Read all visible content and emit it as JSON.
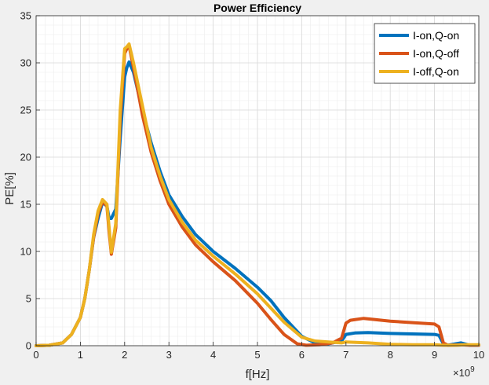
{
  "chart_data": {
    "type": "line",
    "title": "Power Efficiency",
    "xlabel": "f[Hz]",
    "ylabel": "PE[%]",
    "x_multiplier_label": "×10",
    "x_multiplier_exp": "9",
    "xlim": [
      0,
      10
    ],
    "ylim": [
      0,
      35
    ],
    "xticks": [
      0,
      1,
      2,
      3,
      4,
      5,
      6,
      7,
      8,
      9,
      10
    ],
    "yticks": [
      0,
      5,
      10,
      15,
      20,
      25,
      30,
      35
    ],
    "grid": true,
    "minor_grid": true,
    "legend_position": "top-right",
    "series": [
      {
        "name": "I-on,Q-on",
        "color": "#0072BD",
        "x": [
          0,
          0.3,
          0.6,
          0.8,
          1.0,
          1.1,
          1.2,
          1.3,
          1.4,
          1.5,
          1.6,
          1.65,
          1.7,
          1.8,
          1.9,
          2.0,
          2.05,
          2.1,
          2.2,
          2.4,
          2.6,
          2.8,
          3.0,
          3.3,
          3.6,
          4.0,
          4.5,
          5.0,
          5.3,
          5.6,
          6.0,
          6.3,
          6.6,
          6.9,
          7.0,
          7.2,
          7.5,
          8.0,
          8.5,
          9.0,
          9.1,
          9.2,
          9.3,
          9.6,
          9.8,
          10
        ],
        "y": [
          0,
          0.05,
          0.3,
          1.2,
          3.0,
          5.0,
          8.0,
          11.5,
          13.5,
          15.2,
          14.8,
          13.5,
          13.5,
          14.5,
          22.0,
          28.5,
          29.5,
          30.1,
          29.0,
          25.0,
          21.5,
          18.5,
          16.0,
          13.7,
          11.8,
          10.0,
          8.2,
          6.2,
          4.8,
          3.0,
          1.0,
          0.3,
          0.2,
          0.5,
          1.2,
          1.35,
          1.4,
          1.3,
          1.25,
          1.2,
          1.1,
          0.2,
          0.05,
          0.3,
          0.05,
          0.05
        ]
      },
      {
        "name": "I-on,Q-off",
        "color": "#D95319",
        "x": [
          0,
          0.3,
          0.6,
          0.8,
          1.0,
          1.1,
          1.2,
          1.3,
          1.4,
          1.5,
          1.6,
          1.65,
          1.7,
          1.8,
          1.9,
          2.0,
          2.05,
          2.1,
          2.2,
          2.4,
          2.6,
          2.8,
          3.0,
          3.3,
          3.6,
          4.0,
          4.5,
          5.0,
          5.3,
          5.6,
          5.9,
          6.1,
          6.4,
          6.7,
          6.9,
          7.0,
          7.1,
          7.4,
          8.0,
          8.5,
          9.0,
          9.1,
          9.2,
          9.3,
          9.6,
          9.8,
          10
        ],
        "y": [
          0,
          0.05,
          0.3,
          1.2,
          3.0,
          5.0,
          8.0,
          11.5,
          14.0,
          15.3,
          14.8,
          12.0,
          9.7,
          12.5,
          24.0,
          31.0,
          31.5,
          31.8,
          29.5,
          24.5,
          20.5,
          17.5,
          15.0,
          12.6,
          10.7,
          8.9,
          6.9,
          4.5,
          2.8,
          1.2,
          0.2,
          0.05,
          0.1,
          0.3,
          0.8,
          2.4,
          2.7,
          2.9,
          2.6,
          2.45,
          2.3,
          2.0,
          0.3,
          0.05,
          0.1,
          0.05,
          0.05
        ]
      },
      {
        "name": "I-off,Q-on",
        "color": "#EDB120",
        "x": [
          0,
          0.3,
          0.6,
          0.8,
          1.0,
          1.1,
          1.2,
          1.3,
          1.4,
          1.5,
          1.6,
          1.65,
          1.7,
          1.8,
          1.9,
          2.0,
          2.05,
          2.1,
          2.2,
          2.4,
          2.6,
          2.8,
          3.0,
          3.3,
          3.6,
          4.0,
          4.5,
          5.0,
          5.3,
          5.6,
          6.0,
          6.3,
          6.6,
          6.9,
          7.0,
          7.5,
          8.0,
          8.5,
          9.0,
          9.2,
          9.5,
          9.7,
          10
        ],
        "y": [
          0,
          0.05,
          0.3,
          1.2,
          3.0,
          5.0,
          8.0,
          11.8,
          14.3,
          15.5,
          15.0,
          12.5,
          9.9,
          13.0,
          25.0,
          31.5,
          31.7,
          32.0,
          30.0,
          25.5,
          21.0,
          18.0,
          15.5,
          13.1,
          11.2,
          9.5,
          7.6,
          5.5,
          4.0,
          2.5,
          0.9,
          0.5,
          0.4,
          0.3,
          0.4,
          0.3,
          0.15,
          0.1,
          0.1,
          0.05,
          0.05,
          0.1,
          0.1
        ]
      }
    ]
  }
}
